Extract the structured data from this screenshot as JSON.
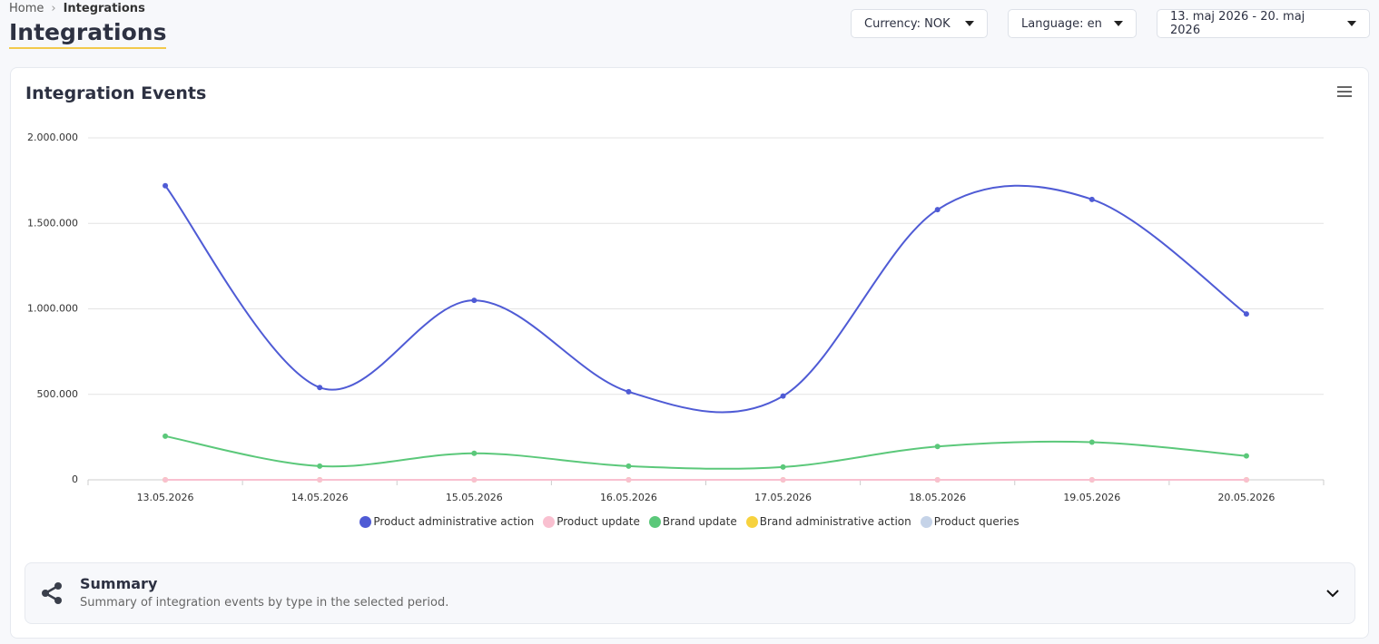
{
  "breadcrumb": [
    "Home",
    "Integrations"
  ],
  "page_title": "Integrations",
  "controls": [
    "Currency: NOK",
    "Language: en",
    "13. maj 2026 - 20. maj 2026"
  ],
  "chart_data": {
    "type": "line",
    "title": "Integration Events",
    "categories": [
      "13.05.2026",
      "14.05.2026",
      "15.05.2026",
      "16.05.2026",
      "17.05.2026",
      "18.05.2026",
      "19.05.2026",
      "20.05.2026"
    ],
    "series": [
      {
        "name": "Product administrative action",
        "color": "#4f5bd5",
        "values": [
          1720000,
          540000,
          1050000,
          515000,
          490000,
          1580000,
          1640000,
          970000
        ]
      },
      {
        "name": "Product update",
        "color": "#f9c0d0",
        "values": [
          0,
          0,
          0,
          0,
          0,
          0,
          0,
          0
        ]
      },
      {
        "name": "Brand update",
        "color": "#5bc87a",
        "values": [
          255000,
          80000,
          155000,
          80000,
          75000,
          195000,
          220000,
          140000
        ]
      },
      {
        "name": "Brand administrative action",
        "color": "#f7d23e",
        "values": [
          0,
          0,
          0,
          0,
          0,
          0,
          0,
          0
        ]
      },
      {
        "name": "Product queries",
        "color": "#c5d3e8",
        "values": [
          0,
          0,
          0,
          0,
          0,
          0,
          0,
          0
        ]
      }
    ],
    "ylim": [
      0,
      2000000
    ],
    "yticks": [
      0,
      {
        "value": 500000,
        "label": "500.000"
      },
      {
        "value": 1000000,
        "label": "1.000.000"
      },
      {
        "value": 1500000,
        "label": "1.500.000"
      },
      {
        "value": 2000000,
        "label": "2.000.000"
      }
    ],
    "grid": true,
    "legend": "bottom"
  },
  "summary": {
    "title": "Summary",
    "description": "Summary of integration events by type in the selected period."
  }
}
